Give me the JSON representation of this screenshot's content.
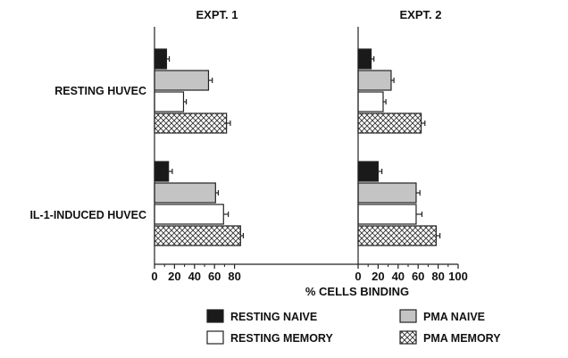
{
  "chart_data": {
    "type": "bar",
    "orientation": "horizontal",
    "xlabel": "% CELLS BINDING",
    "xlim": [
      0,
      100
    ],
    "row_labels": [
      "RESTING HUVEC",
      "IL-1-INDUCED HUVEC"
    ],
    "panels": [
      {
        "title": "EXPT. 1",
        "x_ticks": [
          0,
          20,
          40,
          60,
          80
        ],
        "x_ticks_text": [
          "0",
          "20",
          "40",
          "60",
          "80"
        ],
        "groups": [
          {
            "label": "RESTING HUVEC",
            "values": [
              12,
              54,
              29,
              72
            ],
            "errors": [
              1,
              2,
              1,
              2
            ]
          },
          {
            "label": "IL-1-INDUCED HUVEC",
            "values": [
              14,
              61,
              69,
              86
            ],
            "errors": [
              2,
              1,
              3,
              1
            ]
          }
        ]
      },
      {
        "title": "EXPT. 2",
        "x_ticks": [
          0,
          20,
          40,
          60,
          80,
          100
        ],
        "x_ticks_text": [
          "0",
          "20",
          "40",
          "60",
          "80",
          "100"
        ],
        "groups": [
          {
            "label": "RESTING HUVEC",
            "values": [
              13,
              33,
              25,
              63
            ],
            "errors": [
              1,
              1,
              1,
              2
            ]
          },
          {
            "label": "IL-1-INDUCED HUVEC",
            "values": [
              20,
              58,
              58,
              78
            ],
            "errors": [
              2,
              2,
              4,
              2
            ]
          }
        ]
      }
    ],
    "series": [
      {
        "name": "RESTING NAIVE",
        "fill": "#1a1a1a",
        "pattern": "solid"
      },
      {
        "name": "PMA NAIVE",
        "fill": "#c4c4c4",
        "pattern": "solid"
      },
      {
        "name": "RESTING MEMORY",
        "fill": "#ffffff",
        "pattern": "solid"
      },
      {
        "name": "PMA MEMORY",
        "fill": "#ffffff",
        "pattern": "crosshatch"
      }
    ],
    "legend_placement": "bottom",
    "grid": false
  }
}
